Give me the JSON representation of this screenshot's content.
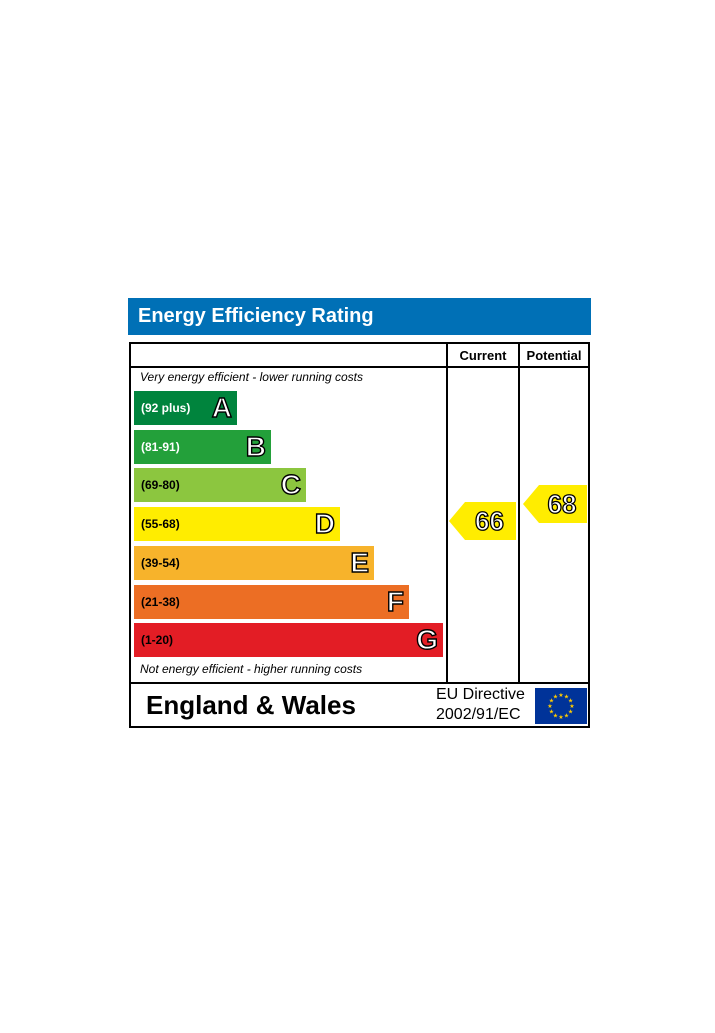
{
  "title": "Energy Efficiency Rating",
  "columns": {
    "current": "Current",
    "potential": "Potential"
  },
  "captions": {
    "top": "Very energy efficient - lower running costs",
    "bottom": "Not energy efficient - higher running costs"
  },
  "footer": {
    "country": "England & Wales",
    "directive_line1": "EU Directive",
    "directive_line2": "2002/91/EC"
  },
  "colors": {
    "header": "#0070b6",
    "A": "#00843d",
    "B": "#23a03a",
    "C": "#8cc63f",
    "D": "#ffed00",
    "E": "#f7b32b",
    "F": "#ec6e24",
    "G": "#e31d25",
    "eu_blue": "#003399",
    "eu_star": "#ffcc00"
  },
  "chart_data": {
    "type": "bar",
    "categories": [
      "A",
      "B",
      "C",
      "D",
      "E",
      "F",
      "G"
    ],
    "ranges": [
      "(92 plus)",
      "(81-91)",
      "(69-80)",
      "(55-68)",
      "(39-54)",
      "(21-38)",
      "(1-20)"
    ],
    "current": {
      "value": "66",
      "band": "D"
    },
    "potential": {
      "value": "68",
      "band": "D"
    }
  }
}
